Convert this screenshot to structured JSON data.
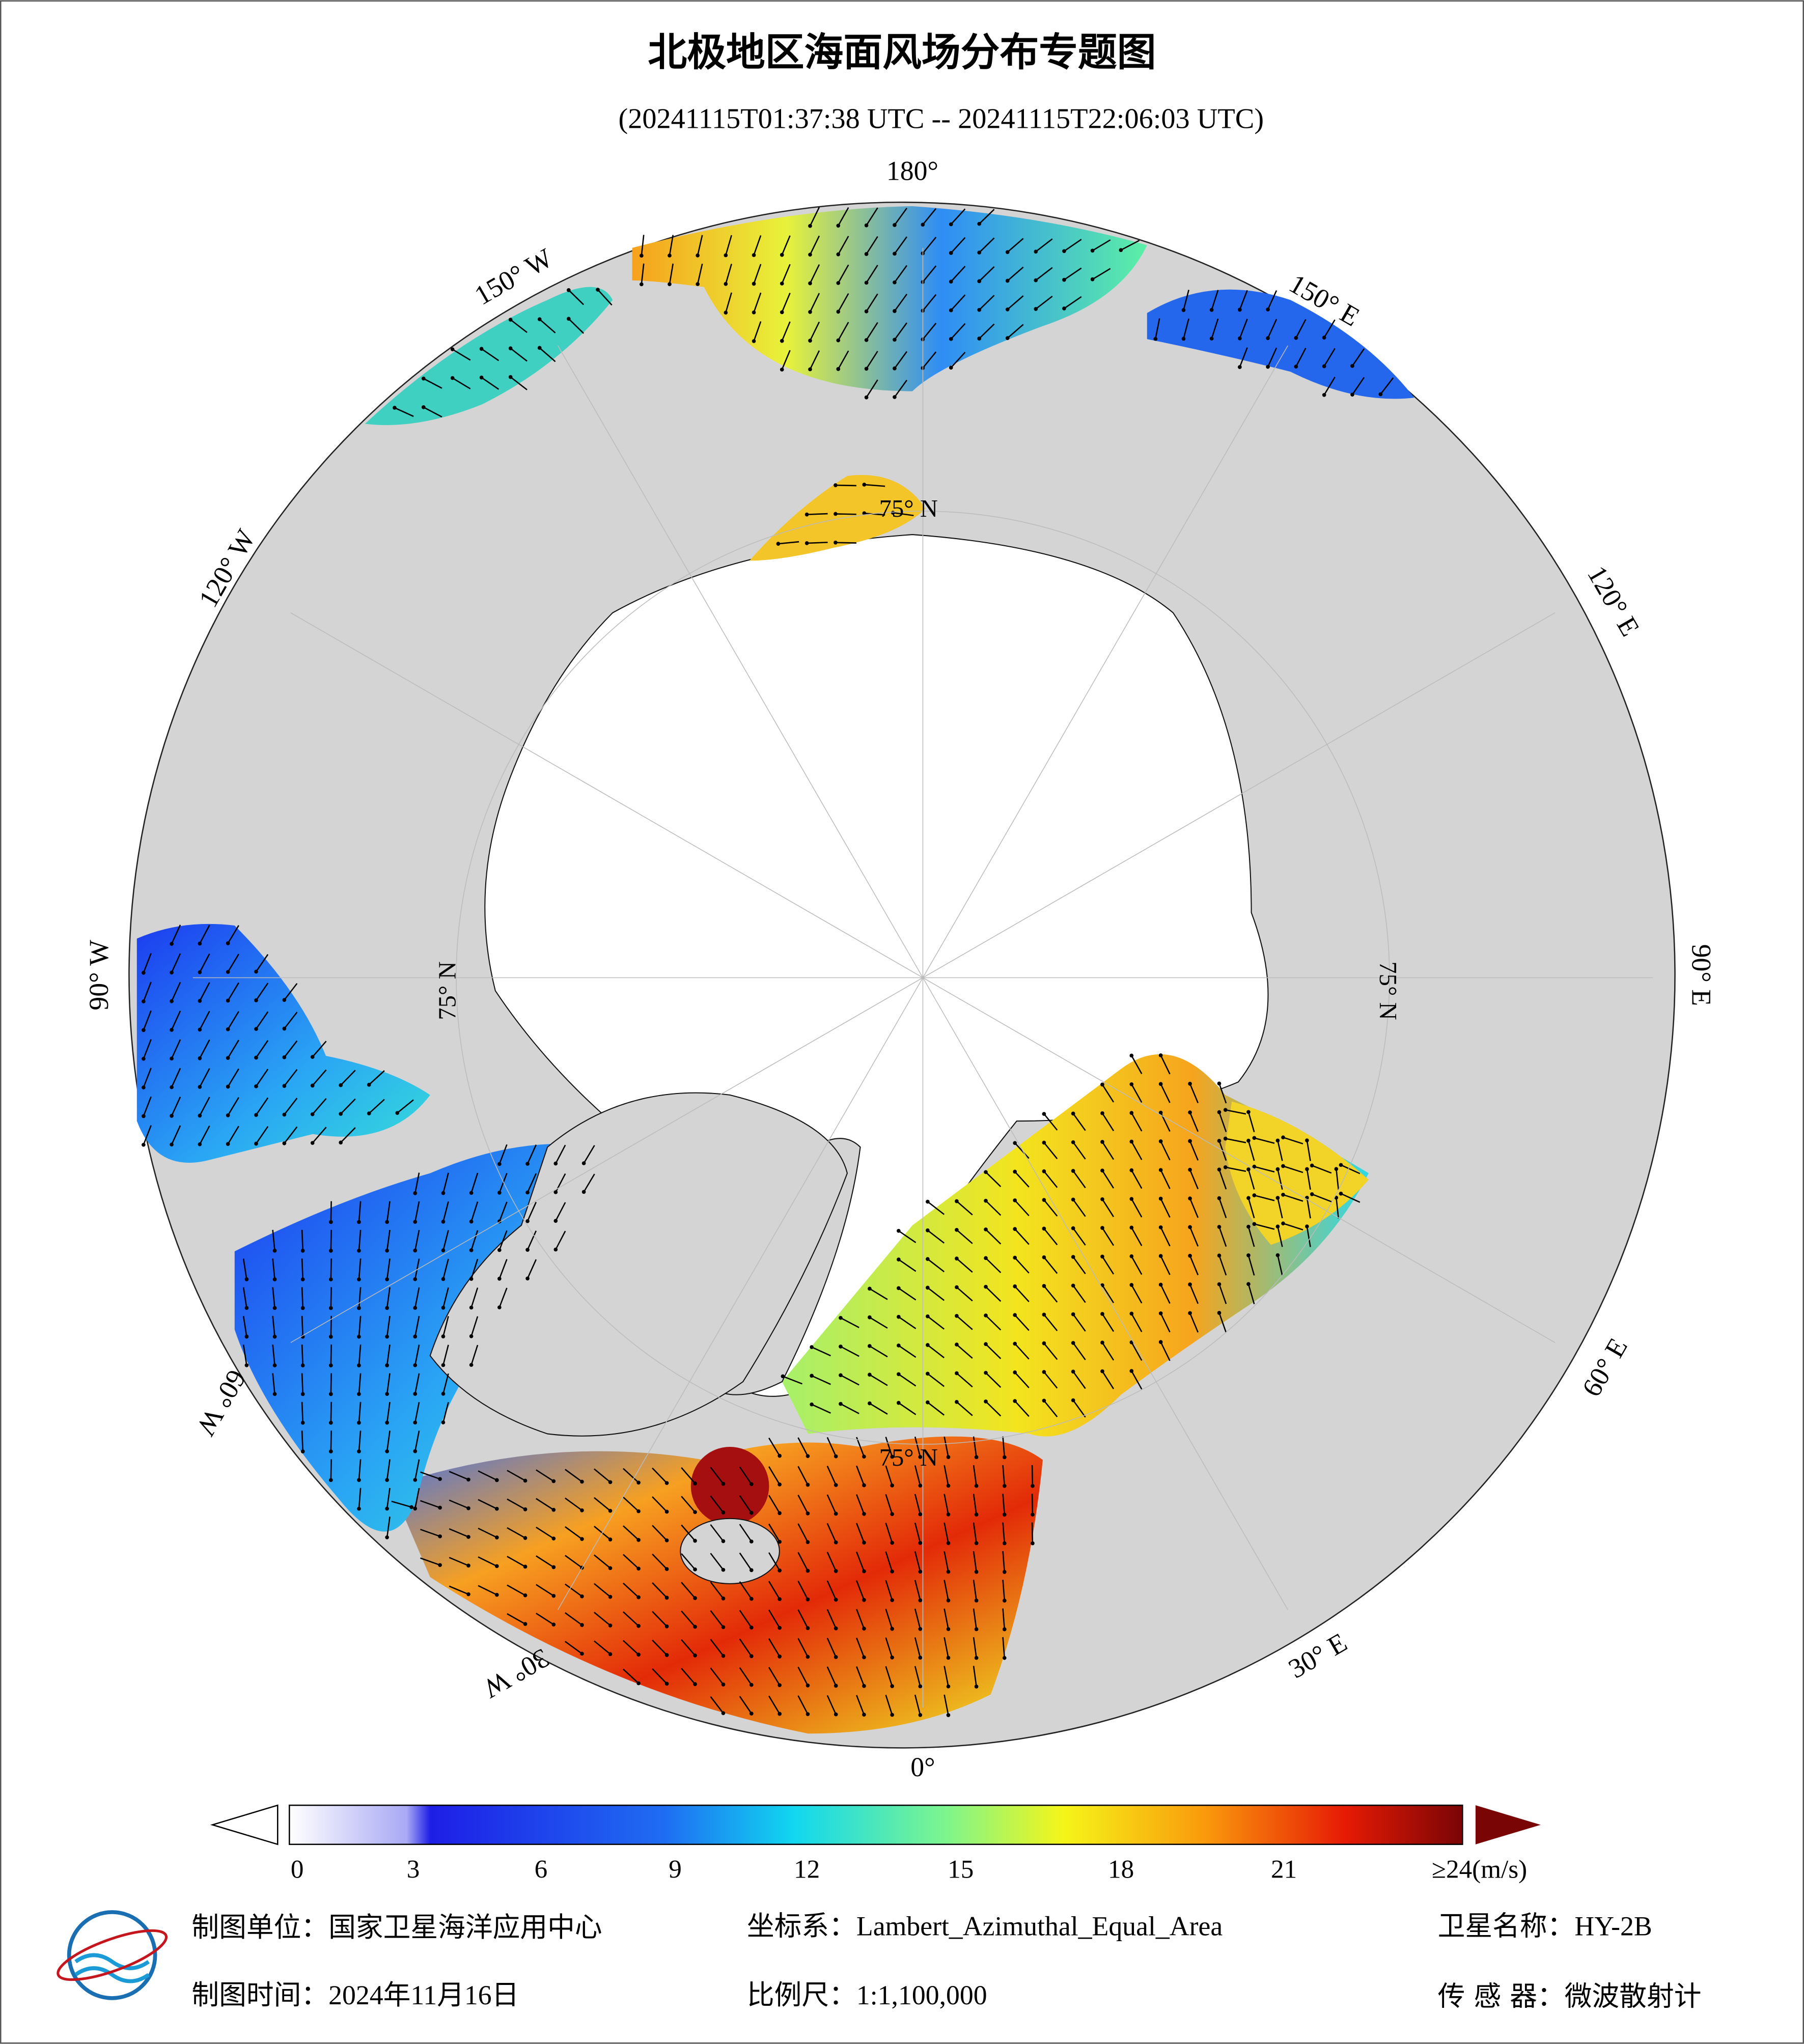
{
  "header": {
    "title": "北极地区海面风场分布专题图",
    "subtitle": "(20241115T01:37:38 UTC -- 20241115T22:06:03 UTC)"
  },
  "graticule": {
    "meridians": [
      "180°",
      "150° W",
      "120° W",
      "90° W",
      "60° W",
      "30° W",
      "0°",
      "30° E",
      "60° E",
      "90° E",
      "120° E",
      "150° E"
    ],
    "parallels": [
      "75° N",
      "75° N",
      "75° N",
      "75° N"
    ]
  },
  "colorbar": {
    "ticks": [
      0,
      3,
      6,
      9,
      12,
      15,
      18,
      21,
      {
        "value": 24,
        "label": "≥24(m/s)"
      }
    ]
  },
  "footer": {
    "producer": "制图单位：国家卫星海洋应用中心",
    "projection": "坐标系：Lambert_Azimuthal_Equal_Area",
    "satellite": "卫星名称：HY-2B",
    "date": "制图时间：2024年11月16日",
    "scale": "比例尺：1:1,100,000",
    "sensor": "传 感 器：微波散射计"
  }
}
